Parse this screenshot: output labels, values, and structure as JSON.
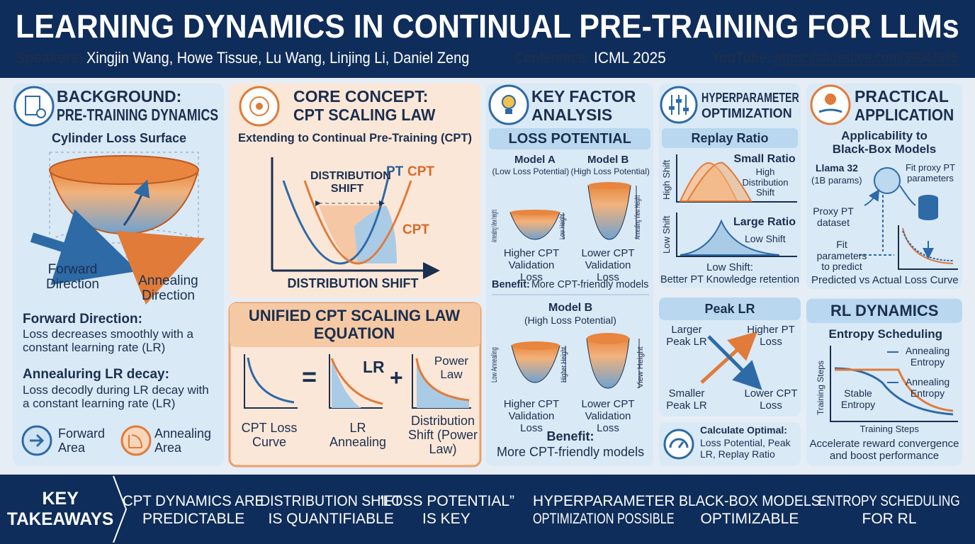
{
  "header": {
    "title": "LEARNING DYNAMICS IN CONTINUAL PRE-TRAINING FOR LLMs",
    "speakers_label": "Speakers:",
    "speakers": "Xingjin Wang, Howe Tissue, Lu Wang, Linjing Li, Daniel Zeng",
    "conference_label": "Conference:",
    "conference": "ICML 2025",
    "youtube_label": "YouTube:",
    "youtube": "https://slideslive.com/39043895"
  },
  "background": {
    "title": [
      "BACKGROUND:",
      "PRE-TRAINING DYNAMICS"
    ],
    "subtitle": "Cylinder Loss Surface",
    "forward_label": "Forward Direction",
    "annealing_label": "Annealing Direction",
    "forward_heading": "Forward Direction:",
    "forward_text": "Loss decreases smoothly with a constant  learning rate (LR)",
    "annealing_heading": "Annealuring LR decay:",
    "annealing_text": "Loss decodly during LR decay with a constant learning rate (LR)",
    "legend": [
      "Forward Area",
      "Annealing Area"
    ]
  },
  "core_concept": {
    "title": [
      "CORE CONCEPT:",
      "CPT SCALING LAW"
    ],
    "subtitle": "Extending to Continual Pre-Training (CPT)",
    "shift_label": "DISTRIBUTION SHIFT",
    "pt_label": "PT",
    "cpt_label": "CPT",
    "cpt_label_2": "CPT",
    "x_label": "DISTRIBUTION SHIFT"
  },
  "unified": {
    "title": "UNIFIED CPT SCALING LAW EQUATION",
    "equals": "=",
    "plus": "+",
    "lr_label": "LR",
    "power_label": "Power Law",
    "captions": [
      "CPT Loss Curve",
      "LR Annealing",
      "Distribution Shift (Power Law)"
    ]
  },
  "key_factor": {
    "title": [
      "KEY FACTOR",
      "ANALYSIS"
    ],
    "section": "LOSS POTENTIAL",
    "model_a": "Model A",
    "model_a_note": "(Low Loss Potential)",
    "model_b": "Model B",
    "model_b_note": "(High Loss Potential)",
    "label_a": "Annealing View height",
    "label_low": "Low Height",
    "label_b": "Annealing View Height",
    "result_a": "Higher CPT Validation Loss",
    "result_b": "Lower CPT Validation Loss",
    "benefit_label": "Benefit:",
    "benefit": "More CPT-friendly models",
    "model_b2": "Model B",
    "model_b2_note": "(High Loss Potential)",
    "label_low_annealing": "Low Annealing",
    "label_higher": "Higher Height",
    "label_view": "View Height",
    "result_c": "Higher CPT Validation Loss",
    "result_d": "Lower CPT Validation Loss",
    "benefit_label_2": "Benefit:",
    "benefit_2": "More CPT-friendly models"
  },
  "hyperparameter": {
    "title": [
      "HYPERPARAMETER",
      "OPTIMIZATION"
    ],
    "replay": "Replay Ratio",
    "high_shift_axis": "High Shift",
    "small_ratio": "Small Ratio",
    "small_note": "High Distribution Shift",
    "low_shift_axis": "Low Shift",
    "large_ratio": "Large Ratio",
    "large_note": "Low Shift",
    "summary_label": "Low Shift:",
    "summary": "Better PT Knowledge retention",
    "peak": "Peak LR",
    "larger": "Larger Peak LR",
    "higher_pt": "Higher PT Loss",
    "smaller": "Smaller Peak LR",
    "lower_cpt": "Lower CPT Loss",
    "calc_label": "Calculate Optimal:",
    "calc_text": "Loss Potential, Peak LR, Replay Ratio"
  },
  "practical": {
    "title": [
      "PRACTICAL",
      "APPLICATION"
    ],
    "subtitle": "Applicability to Black-Box Models",
    "llama": "Llama 32",
    "llama_note": "(1B params)",
    "fit_proxy": "Fit proxy PT parameters",
    "proxy_dataset": "Proxy PT dataset",
    "fit_params": "Fit parameters to predict",
    "curve_caption": "Predicted vs Actual Loss Curve"
  },
  "rl": {
    "title": "RL DYNAMICS",
    "subtitle": "Entropy Scheduling",
    "y_label": "Training Steps",
    "annealing_1": "Annealing Entropy",
    "stable": "Stable Entropy",
    "annealing_2": "Annealing Entropy",
    "x_label": "Training Steps",
    "caption": "Accelerate reward convergence and boost performance"
  },
  "footer": {
    "heading": [
      "KEY",
      "TAKEAWAYS"
    ],
    "takeaways": [
      [
        "CPT DYNAMICS ARE",
        "PREDICTABLE"
      ],
      [
        "DISTRIBUTION SHIFT",
        "IS QUANTIFIABLE"
      ],
      [
        "“LOSS POTENTIAL”",
        "IS KEY"
      ],
      [
        "HYPERPARAMETER",
        "OPTIMIZATION POSSIBLE"
      ],
      [
        "BLACK-BOX MODELS",
        "OPTIMIZABLE"
      ],
      [
        "ENTROPY SCHEDULING",
        "FOR RL"
      ]
    ]
  }
}
